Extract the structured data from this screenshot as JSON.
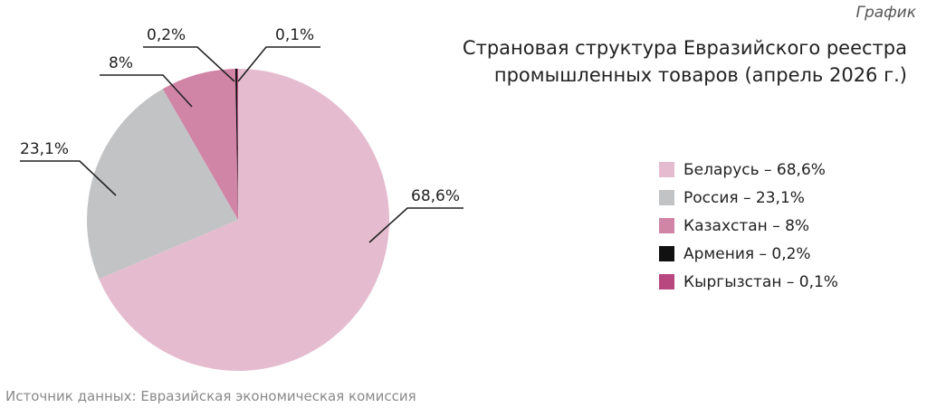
{
  "header": {
    "tag": "График",
    "title_lines": [
      "Страновая структура Евразийского реестра",
      "промышленных товаров (апрель 2026 г.)"
    ]
  },
  "chart_data": {
    "type": "pie",
    "title": "Страновая структура Евразийского реестра промышленных товаров (апрель 2026 г.)",
    "unit": "%",
    "slices": [
      {
        "value": 68.6,
        "label": "68,6%",
        "legend": "Беларусь – 68,6%",
        "color": "#e5bccf"
      },
      {
        "value": 23.1,
        "label": "23,1%",
        "legend": "Россия – 23,1%",
        "color": "#c2c3c5"
      },
      {
        "value": 8.0,
        "label": "8%",
        "legend": "Казахстан – 8%",
        "color": "#d085a7"
      },
      {
        "value": 0.2,
        "label": "0,2%",
        "legend": "Армения – 0,2%",
        "color": "#111111"
      },
      {
        "value": 0.1,
        "label": "0,1%",
        "legend": "Кыргызстан – 0,1%",
        "color": "#b9477f"
      }
    ],
    "legend_placement": "right"
  },
  "footer": {
    "source": "Источник данных: Евразийская экономическая комиссия"
  }
}
